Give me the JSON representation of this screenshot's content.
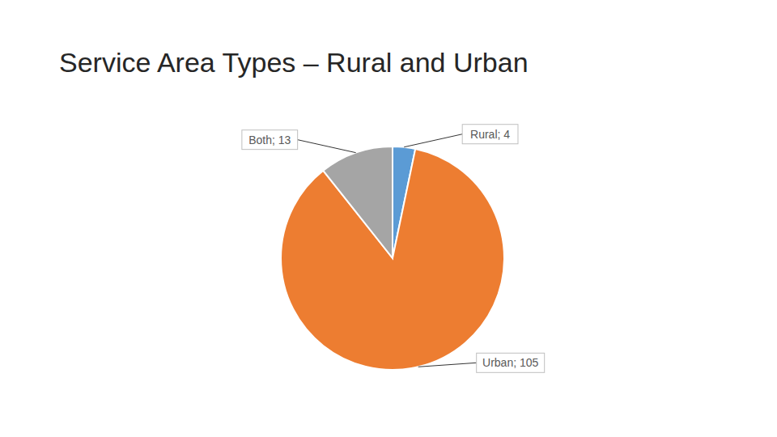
{
  "chart_data": {
    "type": "pie",
    "title": "Service Area Types – Rural and Urban",
    "categories": [
      "Rural",
      "Urban",
      "Both"
    ],
    "values": [
      4,
      105,
      13
    ],
    "value_labels": [
      "Rural; 4",
      "Urban; 105",
      "Both; 13"
    ],
    "colors": [
      "#5b9bd5",
      "#ed7d31",
      "#a5a5a5"
    ],
    "data_labels": true
  }
}
